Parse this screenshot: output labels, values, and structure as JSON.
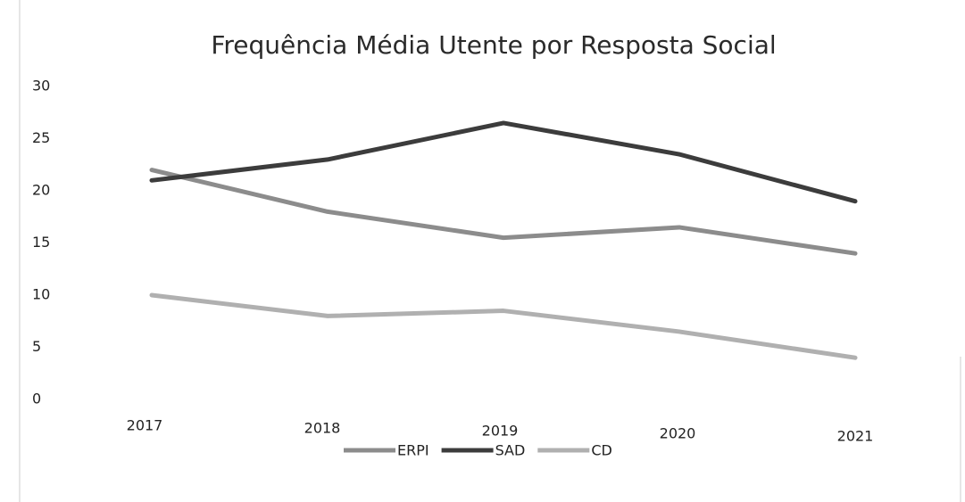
{
  "chart_data": {
    "type": "line",
    "title": "Frequência Média Utente por Resposta Social",
    "categories": [
      "2017",
      "2018",
      "2019",
      "2020",
      "2021"
    ],
    "series": [
      {
        "name": "ERPI",
        "color": "#8c8c8c",
        "values": [
          22,
          18,
          15.5,
          16.5,
          14
        ]
      },
      {
        "name": "SAD",
        "color": "#3c3c3c",
        "values": [
          21,
          23,
          26.5,
          23.5,
          19
        ]
      },
      {
        "name": "CD",
        "color": "#b0b0b0",
        "values": [
          10,
          8,
          8.5,
          6.5,
          4
        ]
      }
    ],
    "ylim": [
      0,
      30
    ],
    "yticks": [
      0,
      5,
      10,
      15,
      20,
      25,
      30
    ],
    "grid": false,
    "legend": "bottom"
  }
}
